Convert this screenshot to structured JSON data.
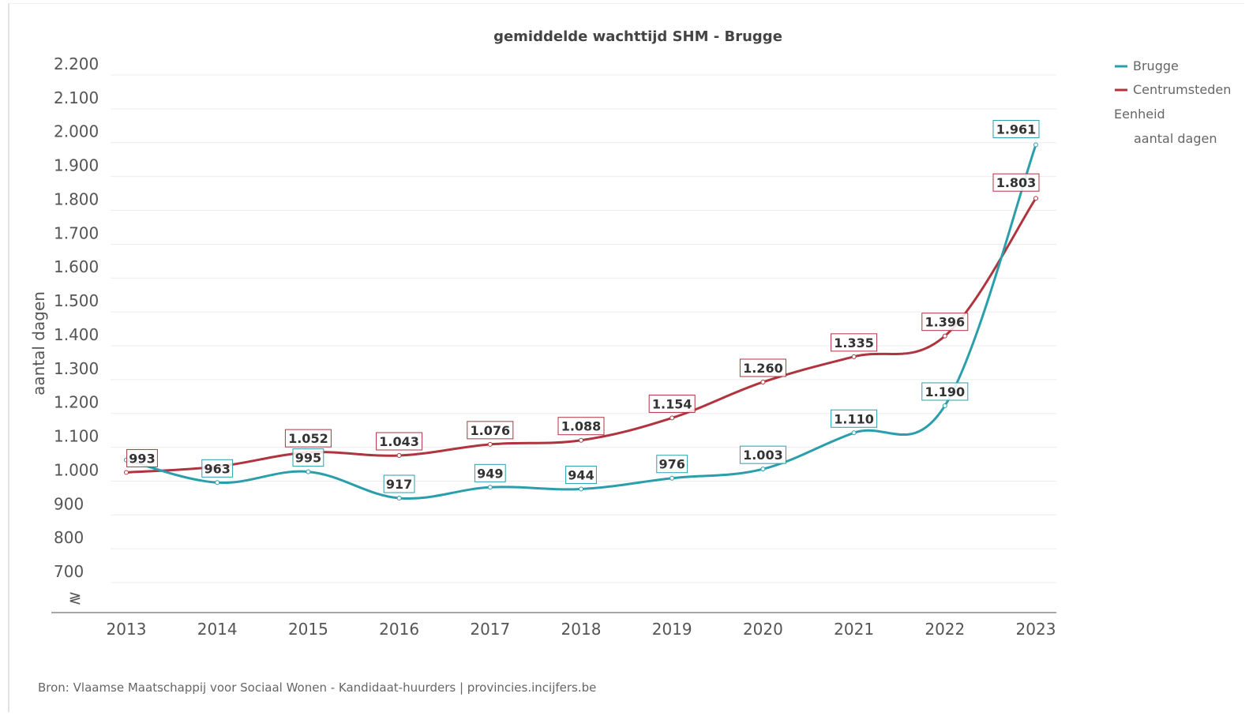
{
  "chart_data": {
    "type": "line",
    "title": "gemiddelde wachttijd SHM - Brugge",
    "ylabel": "aantal dagen",
    "ylim": [
      600,
      2200
    ],
    "y_ticks": [
      "2.200",
      "2.100",
      "2.000",
      "1.900",
      "1.800",
      "1.700",
      "1.600",
      "1.500",
      "1.400",
      "1.300",
      "1.200",
      "1.100",
      "1.000",
      "900",
      "800",
      "700"
    ],
    "y_tick_values": [
      2200,
      2100,
      2000,
      1900,
      1800,
      1700,
      1600,
      1500,
      1400,
      1300,
      1200,
      1100,
      1000,
      900,
      800,
      700
    ],
    "axis_break_symbol": "≷",
    "categories": [
      "2013",
      "2014",
      "2015",
      "2016",
      "2017",
      "2018",
      "2019",
      "2020",
      "2021",
      "2022",
      "2023"
    ],
    "series": [
      {
        "name": "Brugge",
        "color": "#2a9fab",
        "values": [
          1030,
          963,
          995,
          917,
          949,
          944,
          976,
          1003,
          1110,
          1190,
          1961
        ],
        "labels": [
          "",
          "963",
          "995",
          "917",
          "949",
          "944",
          "976",
          "1.003",
          "1.110",
          "1.190",
          "1.961"
        ]
      },
      {
        "name": "Centrumsteden",
        "color": "#b0343f",
        "values": [
          993,
          1010,
          1052,
          1043,
          1076,
          1088,
          1154,
          1260,
          1335,
          1396,
          1803
        ],
        "labels": [
          "993",
          "",
          "1.052",
          "1.043",
          "1.076",
          "1.088",
          "1.154",
          "1.260",
          "1.335",
          "1.396",
          "1.803"
        ]
      }
    ],
    "legend": {
      "position": "top-right",
      "entries": [
        "Brugge",
        "Centrumsteden"
      ],
      "unit_heading": "Eenheid",
      "unit_value": "aantal dagen"
    },
    "grid": true
  },
  "source_text": "Bron: Vlaamse Maatschappij voor Sociaal Wonen - Kandidaat-huurders | provincies.incijfers.be"
}
